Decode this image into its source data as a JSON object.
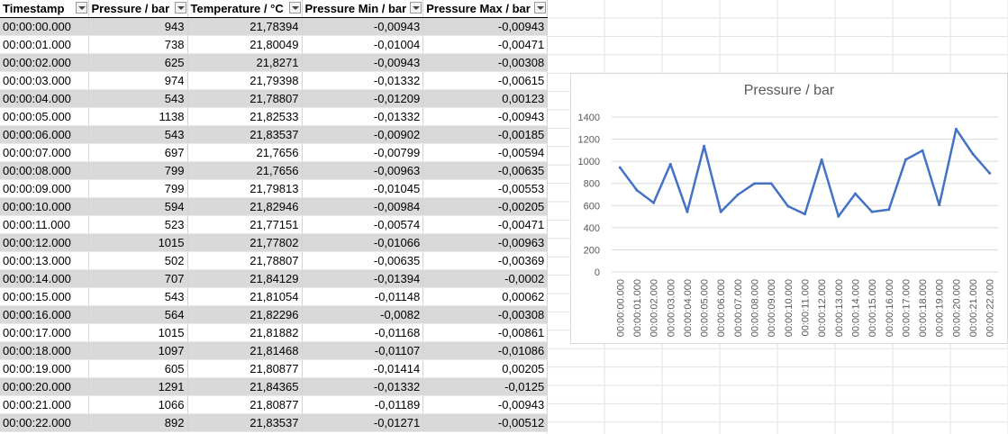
{
  "table": {
    "headers": [
      "Timestamp",
      "Pressure / bar",
      "Temperature / °C",
      "Pressure Min / bar",
      "Pressure Max / bar"
    ],
    "rows": [
      [
        "00:00:00.000",
        "943",
        "21,78394",
        "-0,00943",
        "-0,00943"
      ],
      [
        "00:00:01.000",
        "738",
        "21,80049",
        "-0,01004",
        "-0,00471"
      ],
      [
        "00:00:02.000",
        "625",
        "21,8271",
        "-0,00943",
        "-0,00308"
      ],
      [
        "00:00:03.000",
        "974",
        "21,79398",
        "-0,01332",
        "-0,00615"
      ],
      [
        "00:00:04.000",
        "543",
        "21,78807",
        "-0,01209",
        "0,00123"
      ],
      [
        "00:00:05.000",
        "1138",
        "21,82533",
        "-0,01332",
        "-0,00943"
      ],
      [
        "00:00:06.000",
        "543",
        "21,83537",
        "-0,00902",
        "-0,00185"
      ],
      [
        "00:00:07.000",
        "697",
        "21,7656",
        "-0,00799",
        "-0,00594"
      ],
      [
        "00:00:08.000",
        "799",
        "21,7656",
        "-0,00963",
        "-0,00635"
      ],
      [
        "00:00:09.000",
        "799",
        "21,79813",
        "-0,01045",
        "-0,00553"
      ],
      [
        "00:00:10.000",
        "594",
        "21,82946",
        "-0,00984",
        "-0,00205"
      ],
      [
        "00:00:11.000",
        "523",
        "21,77151",
        "-0,00574",
        "-0,00471"
      ],
      [
        "00:00:12.000",
        "1015",
        "21,77802",
        "-0,01066",
        "-0,00963"
      ],
      [
        "00:00:13.000",
        "502",
        "21,78807",
        "-0,00635",
        "-0,00369"
      ],
      [
        "00:00:14.000",
        "707",
        "21,84129",
        "-0,01394",
        "-0,0002"
      ],
      [
        "00:00:15.000",
        "543",
        "21,81054",
        "-0,01148",
        "0,00062"
      ],
      [
        "00:00:16.000",
        "564",
        "21,82296",
        "-0,0082",
        "-0,00308"
      ],
      [
        "00:00:17.000",
        "1015",
        "21,81882",
        "-0,01168",
        "-0,00861"
      ],
      [
        "00:00:18.000",
        "1097",
        "21,81468",
        "-0,01107",
        "-0,01086"
      ],
      [
        "00:00:19.000",
        "605",
        "21,80877",
        "-0,01414",
        "0,00205"
      ],
      [
        "00:00:20.000",
        "1291",
        "21,84365",
        "-0,01332",
        "-0,0125"
      ],
      [
        "00:00:21.000",
        "1066",
        "21,80877",
        "-0,01189",
        "-0,00943"
      ],
      [
        "00:00:22.000",
        "892",
        "21,83537",
        "-0,01271",
        "-0,00512"
      ]
    ]
  },
  "colors": {
    "band": "#d9d9d9",
    "line": "#4472c4",
    "gridline": "#d9d9d9",
    "axis_text": "#595959"
  },
  "chart_data": {
    "type": "line",
    "title": "Pressure / bar",
    "xlabel": "",
    "ylabel": "",
    "ylim": [
      0,
      1400
    ],
    "yticks": [
      0,
      200,
      400,
      600,
      800,
      1000,
      1200,
      1400
    ],
    "grid": true,
    "legend": "none",
    "categories": [
      "00:00:00.000",
      "00:00:01.000",
      "00:00:02.000",
      "00:00:03.000",
      "00:00:04.000",
      "00:00:05.000",
      "00:00:06.000",
      "00:00:07.000",
      "00:00:08.000",
      "00:00:09.000",
      "00:00:10.000",
      "00:00:11.000",
      "00:00:12.000",
      "00:00:13.000",
      "00:00:14.000",
      "00:00:15.000",
      "00:00:16.000",
      "00:00:17.000",
      "00:00:18.000",
      "00:00:19.000",
      "00:00:20.000",
      "00:00:21.000",
      "00:00:22.000"
    ],
    "series": [
      {
        "values": [
          943,
          738,
          625,
          974,
          543,
          1138,
          543,
          697,
          799,
          799,
          594,
          523,
          1015,
          502,
          707,
          543,
          564,
          1015,
          1097,
          605,
          1291,
          1066,
          892
        ]
      }
    ]
  }
}
